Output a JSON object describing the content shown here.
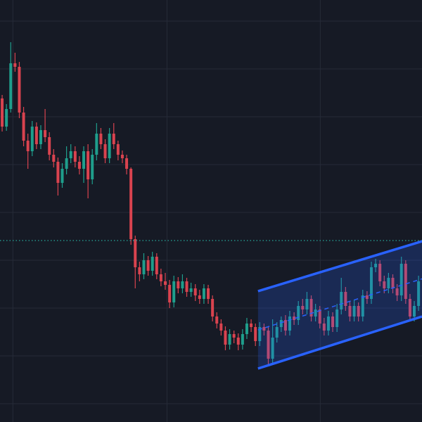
{
  "chart_data": {
    "type": "candlestick",
    "open": [
      460,
      420,
      445,
      510,
      505,
      440,
      400,
      385,
      420,
      395,
      415,
      405,
      380,
      370,
      340,
      360,
      375,
      385,
      370,
      360,
      385,
      345,
      380,
      410,
      395,
      375,
      410,
      395,
      380,
      375,
      360,
      260,
      220,
      210,
      230,
      215,
      235,
      210,
      200,
      195,
      170,
      200,
      190,
      200,
      185,
      190,
      180,
      175,
      190,
      175,
      150,
      140,
      130,
      110,
      125,
      120,
      110,
      125,
      140,
      135,
      115,
      135,
      130,
      90,
      120,
      135,
      145,
      130,
      150,
      145,
      165,
      160,
      175,
      150,
      160,
      140,
      130,
      150,
      135,
      160,
      185,
      165,
      150,
      165,
      150,
      180,
      175,
      220,
      225,
      200,
      190,
      205,
      190,
      180,
      225,
      175,
      150,
      165
    ],
    "high": [
      465,
      452,
      540,
      525,
      512,
      448,
      410,
      428,
      426,
      422,
      445,
      412,
      388,
      376,
      368,
      392,
      395,
      392,
      378,
      392,
      395,
      388,
      425,
      418,
      402,
      418,
      425,
      400,
      386,
      380,
      362,
      265,
      228,
      240,
      236,
      242,
      240,
      218,
      212,
      202,
      208,
      206,
      210,
      205,
      198,
      196,
      188,
      196,
      195,
      180,
      156,
      146,
      136,
      132,
      130,
      126,
      132,
      148,
      146,
      140,
      142,
      140,
      136,
      146,
      142,
      150,
      152,
      158,
      156,
      172,
      175,
      185,
      180,
      168,
      165,
      148,
      158,
      156,
      168,
      205,
      192,
      172,
      174,
      170,
      188,
      186,
      228,
      232,
      230,
      208,
      212,
      210,
      196,
      235,
      230,
      182,
      172,
      208
    ],
    "low": [
      413,
      414,
      440,
      498,
      432,
      392,
      360,
      378,
      388,
      388,
      398,
      372,
      362,
      322,
      333,
      352,
      368,
      362,
      352,
      340,
      318,
      338,
      372,
      388,
      368,
      368,
      388,
      372,
      368,
      352,
      252,
      190,
      200,
      203,
      208,
      208,
      203,
      193,
      188,
      162,
      163,
      183,
      183,
      178,
      178,
      172,
      168,
      168,
      168,
      143,
      133,
      123,
      102,
      103,
      112,
      102,
      103,
      118,
      128,
      108,
      108,
      123,
      82,
      84,
      113,
      128,
      123,
      123,
      138,
      138,
      153,
      153,
      143,
      143,
      133,
      123,
      123,
      128,
      128,
      153,
      158,
      143,
      143,
      143,
      143,
      168,
      168,
      213,
      193,
      183,
      183,
      183,
      172,
      172,
      168,
      143,
      143,
      158
    ],
    "close": [
      420,
      445,
      510,
      505,
      440,
      400,
      385,
      420,
      395,
      415,
      405,
      380,
      370,
      340,
      360,
      375,
      385,
      370,
      360,
      385,
      345,
      380,
      410,
      395,
      375,
      410,
      395,
      380,
      375,
      360,
      260,
      220,
      210,
      230,
      215,
      235,
      210,
      200,
      195,
      170,
      200,
      190,
      200,
      185,
      190,
      180,
      175,
      190,
      175,
      150,
      140,
      130,
      110,
      125,
      120,
      110,
      125,
      140,
      135,
      115,
      135,
      130,
      90,
      120,
      135,
      145,
      130,
      150,
      145,
      165,
      160,
      175,
      150,
      160,
      140,
      130,
      150,
      135,
      160,
      185,
      165,
      150,
      165,
      150,
      180,
      175,
      220,
      225,
      200,
      190,
      205,
      190,
      180,
      225,
      175,
      150,
      165,
      200
    ],
    "up_color": "#1f9e8c",
    "down_color": "#d9434f",
    "xlim": [
      -0.5,
      97.8
    ],
    "ylim": [
      0,
      600
    ],
    "xticks": [
      2.5,
      38.4,
      74.1
    ],
    "yticks": [
      26,
      94,
      162,
      230,
      298,
      366,
      434,
      502,
      570
    ],
    "grid": true,
    "price_line": 258,
    "price_line_color": "#26a69a",
    "channel": {
      "x": [
        59.6,
        97.8
      ],
      "upper": [
        186,
        257
      ],
      "lower": [
        76,
        150
      ],
      "middle": [
        131,
        203.5
      ],
      "color": "#2962ff"
    }
  }
}
